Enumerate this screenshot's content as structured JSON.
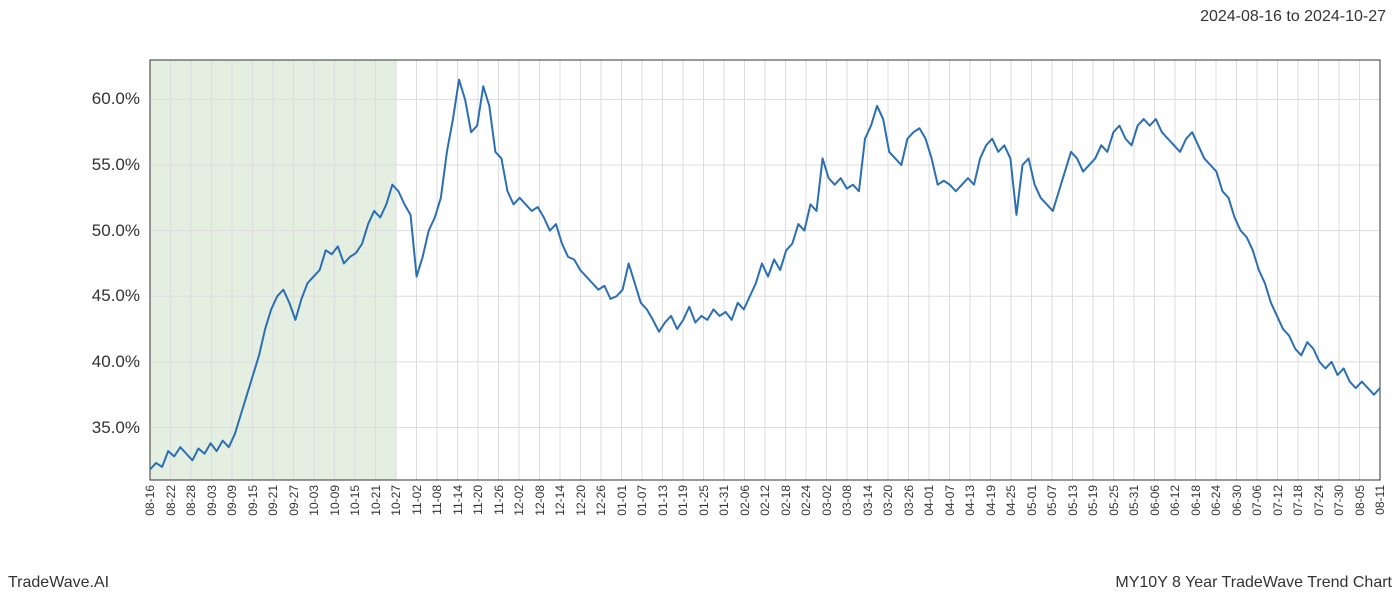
{
  "header": {
    "date_range": "2024-08-16 to 2024-10-27"
  },
  "footer": {
    "brand": "TradeWave.AI",
    "title": "MY10Y 8 Year TradeWave Trend Chart"
  },
  "chart": {
    "type": "line",
    "background_color": "#ffffff",
    "grid_color": "#dddddd",
    "line_color": "#2a6eb5",
    "line_width": 2,
    "highlight_band": {
      "fill": "#d9e8d4",
      "opacity": 0.7,
      "x_start_index": 0,
      "x_end_index": 12
    },
    "y_axis": {
      "min": 31,
      "max": 63,
      "ticks": [
        35.0,
        40.0,
        45.0,
        50.0,
        55.0,
        60.0
      ],
      "tick_labels": [
        "35.0%",
        "40.0%",
        "45.0%",
        "50.0%",
        "55.0%",
        "60.0%"
      ],
      "label_fontsize": 17
    },
    "x_axis": {
      "labels": [
        "08-16",
        "08-22",
        "08-28",
        "09-03",
        "09-09",
        "09-15",
        "09-21",
        "09-27",
        "10-03",
        "10-09",
        "10-15",
        "10-21",
        "10-27",
        "11-02",
        "11-08",
        "11-14",
        "11-20",
        "11-26",
        "12-02",
        "12-08",
        "12-14",
        "12-20",
        "12-26",
        "01-01",
        "01-07",
        "01-13",
        "01-19",
        "01-25",
        "01-31",
        "02-06",
        "02-12",
        "02-18",
        "02-24",
        "03-02",
        "03-08",
        "03-14",
        "03-20",
        "03-26",
        "04-01",
        "04-07",
        "04-13",
        "04-19",
        "04-25",
        "05-01",
        "05-07",
        "05-13",
        "05-19",
        "05-25",
        "05-31",
        "06-06",
        "06-12",
        "06-18",
        "06-24",
        "06-30",
        "07-06",
        "07-12",
        "07-18",
        "07-24",
        "07-30",
        "08-05",
        "08-11"
      ],
      "label_fontsize": 12,
      "rotation": 90
    },
    "series": {
      "name": "MY10Y",
      "values": [
        31.8,
        32.3,
        32.0,
        33.2,
        32.8,
        33.5,
        33.0,
        32.5,
        33.4,
        33.0,
        33.8,
        33.2,
        34.0,
        33.5,
        34.5,
        36.0,
        37.5,
        39.0,
        40.5,
        42.5,
        44.0,
        45.0,
        45.5,
        44.5,
        43.2,
        44.8,
        46.0,
        46.5,
        47.0,
        48.5,
        48.2,
        48.8,
        47.5,
        48.0,
        48.3,
        49.0,
        50.5,
        51.5,
        51.0,
        52.0,
        53.5,
        53.0,
        52.0,
        51.2,
        46.5,
        48.0,
        50.0,
        51.0,
        52.5,
        56.0,
        58.5,
        61.5,
        60.0,
        57.5,
        58.0,
        61.0,
        59.5,
        56.0,
        55.5,
        53.0,
        52.0,
        52.5,
        52.0,
        51.5,
        51.8,
        51.0,
        50.0,
        50.5,
        49.0,
        48.0,
        47.8,
        47.0,
        46.5,
        46.0,
        45.5,
        45.8,
        44.8,
        45.0,
        45.5,
        47.5,
        46.0,
        44.5,
        44.0,
        43.2,
        42.3,
        43.0,
        43.5,
        42.5,
        43.2,
        44.2,
        43.0,
        43.5,
        43.2,
        44.0,
        43.5,
        43.8,
        43.2,
        44.5,
        44.0,
        45.0,
        46.0,
        47.5,
        46.5,
        47.8,
        47.0,
        48.5,
        49.0,
        50.5,
        50.0,
        52.0,
        51.5,
        55.5,
        54.0,
        53.5,
        54.0,
        53.2,
        53.5,
        53.0,
        57.0,
        58.0,
        59.5,
        58.5,
        56.0,
        55.5,
        55.0,
        57.0,
        57.5,
        57.8,
        57.0,
        55.5,
        53.5,
        53.8,
        53.5,
        53.0,
        53.5,
        54.0,
        53.5,
        55.5,
        56.5,
        57.0,
        56.0,
        56.5,
        55.5,
        51.2,
        55.0,
        55.5,
        53.5,
        52.5,
        52.0,
        51.5,
        53.0,
        54.5,
        56.0,
        55.5,
        54.5,
        55.0,
        55.5,
        56.5,
        56.0,
        57.5,
        58.0,
        57.0,
        56.5,
        58.0,
        58.5,
        58.0,
        58.5,
        57.5,
        57.0,
        56.5,
        56.0,
        57.0,
        57.5,
        56.5,
        55.5,
        55.0,
        54.5,
        53.0,
        52.5,
        51.0,
        50.0,
        49.5,
        48.5,
        47.0,
        46.0,
        44.5,
        43.5,
        42.5,
        42.0,
        41.0,
        40.5,
        41.5,
        41.0,
        40.0,
        39.5,
        40.0,
        39.0,
        39.5,
        38.5,
        38.0,
        38.5,
        38.0,
        37.5,
        38.0
      ]
    }
  }
}
